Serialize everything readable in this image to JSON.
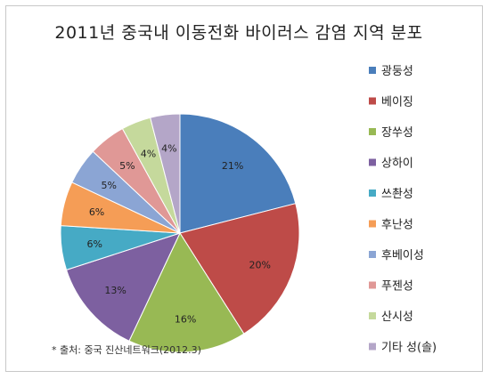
{
  "chart_data": {
    "type": "pie",
    "title": "2011년 중국내 이동전화 바이러스 감염 지역 분포",
    "source": "* 출처: 중국 진산네트워크(2012.3)",
    "legend_position": "right",
    "slices": [
      {
        "label": "광둥성",
        "value": 21,
        "color": "#4a7ebb"
      },
      {
        "label": "베이징",
        "value": 20,
        "color": "#be4b48"
      },
      {
        "label": "장쑤성",
        "value": 16,
        "color": "#98b954"
      },
      {
        "label": "상하이",
        "value": 13,
        "color": "#7d60a0"
      },
      {
        "label": "쓰촨성",
        "value": 6,
        "color": "#46aac5"
      },
      {
        "label": "후난성",
        "value": 6,
        "color": "#f59d56"
      },
      {
        "label": "후베이성",
        "value": 5,
        "color": "#8ba5d4"
      },
      {
        "label": "푸젠성",
        "value": 5,
        "color": "#e09896"
      },
      {
        "label": "산시성",
        "value": 4,
        "color": "#c5d99c"
      },
      {
        "label": "기타 성(솔)",
        "value": 4,
        "color": "#b4a6c8"
      }
    ]
  }
}
